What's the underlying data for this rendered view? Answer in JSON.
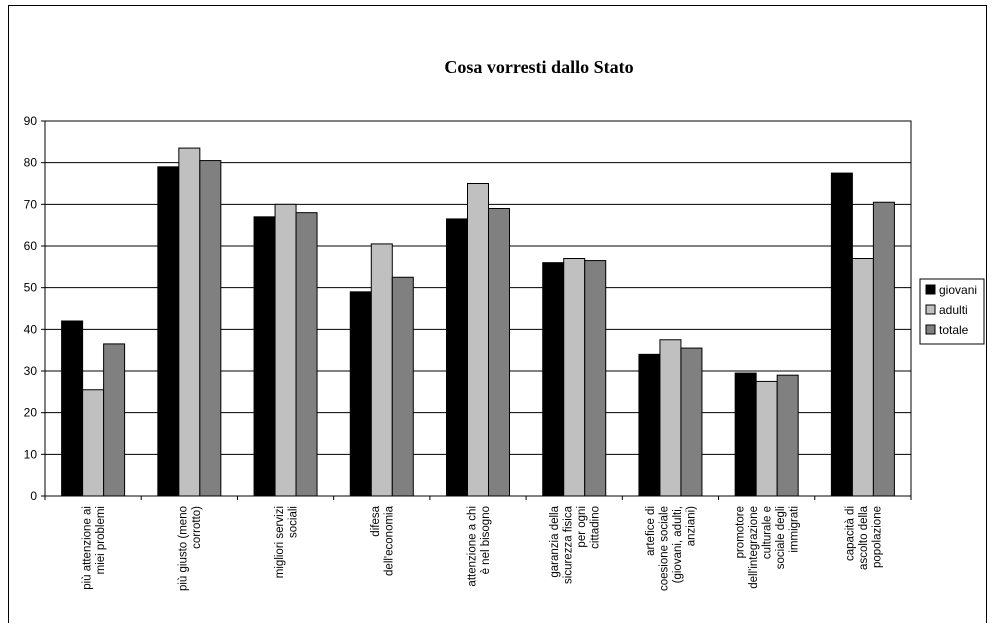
{
  "chart_data": {
    "type": "bar",
    "title": "Cosa vorresti dallo Stato",
    "xlabel": "",
    "ylabel": "",
    "ylim": [
      0,
      90
    ],
    "yticks": [
      0,
      10,
      20,
      30,
      40,
      50,
      60,
      70,
      80,
      90
    ],
    "grid": true,
    "legend_position": "right",
    "categories": [
      "più attenzione ai miei problemi",
      "più giusto (meno corrotto)",
      "migliori servizi sociali",
      "difesa dell'economia",
      "attenzione a chi è nel bisogno",
      "garanzia della sicurezza fisica per ogni cittadino",
      "artefice di coesione sociale (giovani, adulti, anziani)",
      "promotore dell'integrazione culturale e sociale degli immigrati",
      "capacità di ascolto della popolazione"
    ],
    "category_lines": [
      [
        "più attenzione ai",
        "miei problemi"
      ],
      [
        "più giusto (meno",
        "corrotto)"
      ],
      [
        "migliori servizi",
        "sociali"
      ],
      [
        "difesa",
        "dell'economia"
      ],
      [
        "attenzione a chi",
        "è nel bisogno"
      ],
      [
        "garanzia della",
        "sicurezza fisica",
        "per ogni",
        "cittadino"
      ],
      [
        "artefice di",
        "coesione sociale",
        "(giovani, adulti,",
        "anziani)"
      ],
      [
        "promotore",
        "dell'integrazione",
        "culturale e",
        "sociale degli",
        "immigrati"
      ],
      [
        "capacità di",
        "ascolto della",
        "popolazione"
      ]
    ],
    "series": [
      {
        "name": "giovani",
        "color": "#000000",
        "values": [
          42,
          79,
          67,
          49,
          66.5,
          56,
          34,
          29.5,
          77.5
        ]
      },
      {
        "name": "adulti",
        "color": "#c0c0c0",
        "values": [
          25.5,
          83.5,
          70,
          60.5,
          75,
          57,
          37.5,
          27.5,
          57
        ]
      },
      {
        "name": "totale",
        "color": "#808080",
        "values": [
          36.5,
          80.5,
          68,
          52.5,
          69,
          56.5,
          35.5,
          29,
          70.5
        ]
      }
    ]
  }
}
